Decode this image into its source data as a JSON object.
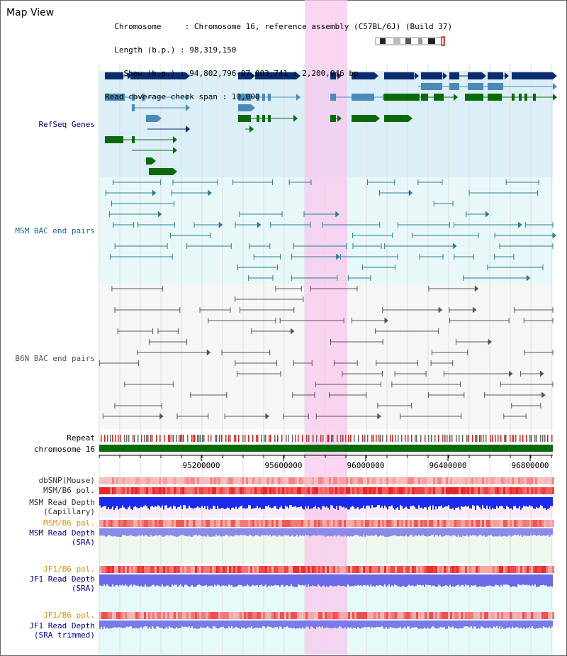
{
  "header": {
    "title": "Map View",
    "info_lines": [
      "  Chromosome     : Chromosome 16, reference assembly (C57BL/6J) (Build 37)",
      "  Length (b.p.) : 98,319,150",
      "    Show (b.p.) : 94,802,796-97,003,741 : 2,200,946 bp",
      "Read coverage check span : 10,000"
    ]
  },
  "tracks": {
    "refseq": "RefSeq Genes",
    "msm_bac": "MSM BAC end pairs",
    "b6n_bac": "B6N BAC end pairs",
    "repeat": "Repeat",
    "chromosome": "chromosome 16",
    "dbsnp": "dbSNP(Mouse)",
    "msm_b6_pol": "MSM/B6 pol.",
    "msm_depth_cap_1": "MSM Read Depth",
    "msm_depth_cap_2": "(Capillary)",
    "msm_b6_pol_2": "MSM/B6 pol.",
    "msm_depth_sra_1": "MSM Read Depth",
    "msm_depth_sra_2": "(SRA)",
    "jf1_b6_pol": "JF1/B6 pol.",
    "jf1_depth_sra_1": "JF1 Read Depth",
    "jf1_depth_sra_2": "(SRA)",
    "jf1_b6_pol_2": "JF1/B6 pol.",
    "jf1_depth_trim_1": "JF1 Read Depth",
    "jf1_depth_trim_2": "(SRA trimmed)"
  },
  "axis": {
    "ticks": [
      "95200000",
      "95600000",
      "96000000",
      "96400000",
      "96800000"
    ]
  },
  "colors": {
    "refseq_dark": "#0b2b6e",
    "refseq_mid": "#4a8ab8",
    "refseq_green": "#0a6a0a",
    "msm_bac": "#2a7a95",
    "b6n_bac": "#555555",
    "highlight": "#f8c8ee",
    "chromosome_bar": "#0a6a0a",
    "label_orange": "#e8900a",
    "label_blue": "#00008b"
  }
}
